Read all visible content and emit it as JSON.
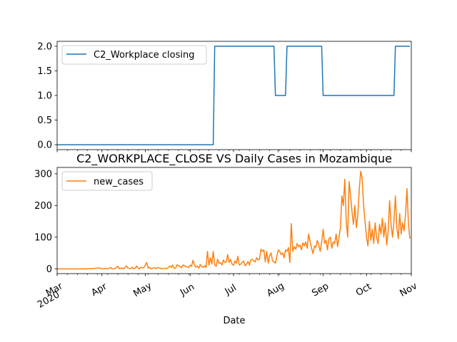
{
  "chart_data": [
    {
      "type": "line",
      "title": "",
      "xlabel": "",
      "ylabel": "",
      "ylim": [
        -0.1,
        2.1
      ],
      "yticks": [
        "0.0",
        "0.5",
        "1.0",
        "1.5",
        "2.0"
      ],
      "grid": false,
      "legend": "top-left",
      "series": [
        {
          "name": "C2_Workplace closing",
          "color": "#1f77b4",
          "step": true,
          "points": [
            [
              "2020-03-01",
              0
            ],
            [
              "2020-06-17",
              0
            ],
            [
              "2020-06-18",
              2
            ],
            [
              "2020-07-29",
              2
            ],
            [
              "2020-07-30",
              1
            ],
            [
              "2020-08-06",
              1
            ],
            [
              "2020-08-07",
              2
            ],
            [
              "2020-08-31",
              2
            ],
            [
              "2020-09-01",
              1
            ],
            [
              "2020-10-20",
              1
            ],
            [
              "2020-10-21",
              2
            ],
            [
              "2020-10-31",
              2
            ]
          ]
        }
      ]
    },
    {
      "type": "line",
      "title": "C2_WORKPLACE_CLOSE VS Daily Cases in Mozambique",
      "xlabel": "Date",
      "ylabel": "",
      "ylim": [
        -15,
        320
      ],
      "yticks": [
        "0",
        "100",
        "200",
        "300"
      ],
      "grid": false,
      "legend": "top-left",
      "x_start": "2020-03-01",
      "x_end": "2020-11-01",
      "xticks": [
        {
          "date": "2020-03-01",
          "label": "Mar",
          "sublabel": "2020"
        },
        {
          "date": "2020-04-01",
          "label": "Apr"
        },
        {
          "date": "2020-05-01",
          "label": "May"
        },
        {
          "date": "2020-06-01",
          "label": "Jun"
        },
        {
          "date": "2020-07-01",
          "label": "Jul"
        },
        {
          "date": "2020-08-01",
          "label": "Aug"
        },
        {
          "date": "2020-09-01",
          "label": "Sep"
        },
        {
          "date": "2020-10-01",
          "label": "Oct"
        },
        {
          "date": "2020-11-01",
          "label": "Nov"
        }
      ],
      "series": [
        {
          "name": "new_cases",
          "color": "#ff7f0e",
          "points": [
            [
              "2020-03-01",
              0
            ],
            [
              "2020-03-22",
              0
            ],
            [
              "2020-03-23",
              1
            ],
            [
              "2020-03-24",
              0
            ],
            [
              "2020-03-30",
              3
            ],
            [
              "2020-03-31",
              2
            ],
            [
              "2020-04-01",
              0
            ],
            [
              "2020-04-03",
              1
            ],
            [
              "2020-04-05",
              0
            ],
            [
              "2020-04-07",
              4
            ],
            [
              "2020-04-08",
              0
            ],
            [
              "2020-04-10",
              1
            ],
            [
              "2020-04-12",
              8
            ],
            [
              "2020-04-13",
              0
            ],
            [
              "2020-04-15",
              3
            ],
            [
              "2020-04-16",
              0
            ],
            [
              "2020-04-18",
              9
            ],
            [
              "2020-04-19",
              2
            ],
            [
              "2020-04-21",
              1
            ],
            [
              "2020-04-22",
              5
            ],
            [
              "2020-04-23",
              0
            ],
            [
              "2020-04-24",
              2
            ],
            [
              "2020-04-25",
              9
            ],
            [
              "2020-04-26",
              3
            ],
            [
              "2020-04-27",
              0
            ],
            [
              "2020-04-28",
              5
            ],
            [
              "2020-04-29",
              3
            ],
            [
              "2020-04-30",
              4
            ],
            [
              "2020-05-02",
              20
            ],
            [
              "2020-05-03",
              2
            ],
            [
              "2020-05-04",
              5
            ],
            [
              "2020-05-05",
              0
            ],
            [
              "2020-05-07",
              3
            ],
            [
              "2020-05-08",
              1
            ],
            [
              "2020-05-10",
              4
            ],
            [
              "2020-05-12",
              0
            ],
            [
              "2020-05-14",
              2
            ],
            [
              "2020-05-16",
              1
            ],
            [
              "2020-05-18",
              9
            ],
            [
              "2020-05-19",
              4
            ],
            [
              "2020-05-20",
              12
            ],
            [
              "2020-05-21",
              1
            ],
            [
              "2020-05-22",
              3
            ],
            [
              "2020-05-23",
              13
            ],
            [
              "2020-05-24",
              10
            ],
            [
              "2020-05-25",
              8
            ],
            [
              "2020-05-26",
              3
            ],
            [
              "2020-05-27",
              12
            ],
            [
              "2020-05-28",
              10
            ],
            [
              "2020-05-29",
              7
            ],
            [
              "2020-05-30",
              6
            ],
            [
              "2020-05-31",
              4
            ],
            [
              "2020-06-01",
              12
            ],
            [
              "2020-06-02",
              8
            ],
            [
              "2020-06-03",
              27
            ],
            [
              "2020-06-04",
              12
            ],
            [
              "2020-06-05",
              5
            ],
            [
              "2020-06-06",
              9
            ],
            [
              "2020-06-07",
              2
            ],
            [
              "2020-06-08",
              14
            ],
            [
              "2020-06-09",
              7
            ],
            [
              "2020-06-10",
              5
            ],
            [
              "2020-06-11",
              10
            ],
            [
              "2020-06-12",
              4
            ],
            [
              "2020-06-13",
              55
            ],
            [
              "2020-06-14",
              12
            ],
            [
              "2020-06-15",
              35
            ],
            [
              "2020-06-16",
              15
            ],
            [
              "2020-06-17",
              55
            ],
            [
              "2020-06-18",
              13
            ],
            [
              "2020-06-19",
              8
            ],
            [
              "2020-06-20",
              30
            ],
            [
              "2020-06-21",
              17
            ],
            [
              "2020-06-22",
              20
            ],
            [
              "2020-06-23",
              12
            ],
            [
              "2020-06-24",
              28
            ],
            [
              "2020-06-25",
              20
            ],
            [
              "2020-06-26",
              22
            ],
            [
              "2020-06-27",
              45
            ],
            [
              "2020-06-28",
              20
            ],
            [
              "2020-06-29",
              30
            ],
            [
              "2020-06-30",
              15
            ],
            [
              "2020-07-01",
              11
            ],
            [
              "2020-07-02",
              25
            ],
            [
              "2020-07-03",
              18
            ],
            [
              "2020-07-04",
              40
            ],
            [
              "2020-07-05",
              12
            ],
            [
              "2020-07-06",
              15
            ],
            [
              "2020-07-07",
              20
            ],
            [
              "2020-07-08",
              25
            ],
            [
              "2020-07-09",
              10
            ],
            [
              "2020-07-10",
              14
            ],
            [
              "2020-07-11",
              23
            ],
            [
              "2020-07-12",
              12
            ],
            [
              "2020-07-13",
              28
            ],
            [
              "2020-07-14",
              30
            ],
            [
              "2020-07-15",
              25
            ],
            [
              "2020-07-16",
              22
            ],
            [
              "2020-07-17",
              35
            ],
            [
              "2020-07-18",
              28
            ],
            [
              "2020-07-19",
              30
            ],
            [
              "2020-07-20",
              62
            ],
            [
              "2020-07-21",
              55
            ],
            [
              "2020-07-22",
              60
            ],
            [
              "2020-07-23",
              22
            ],
            [
              "2020-07-24",
              55
            ],
            [
              "2020-07-25",
              18
            ],
            [
              "2020-07-26",
              42
            ],
            [
              "2020-07-27",
              50
            ],
            [
              "2020-07-28",
              25
            ],
            [
              "2020-07-29",
              22
            ],
            [
              "2020-07-30",
              18
            ],
            [
              "2020-07-31",
              40
            ],
            [
              "2020-08-01",
              60
            ],
            [
              "2020-08-02",
              55
            ],
            [
              "2020-08-03",
              45
            ],
            [
              "2020-08-04",
              50
            ],
            [
              "2020-08-05",
              35
            ],
            [
              "2020-08-06",
              60
            ],
            [
              "2020-08-07",
              55
            ],
            [
              "2020-08-08",
              67
            ],
            [
              "2020-08-09",
              20
            ],
            [
              "2020-08-10",
              143
            ],
            [
              "2020-08-11",
              55
            ],
            [
              "2020-08-12",
              70
            ],
            [
              "2020-08-13",
              62
            ],
            [
              "2020-08-14",
              80
            ],
            [
              "2020-08-15",
              70
            ],
            [
              "2020-08-16",
              75
            ],
            [
              "2020-08-17",
              60
            ],
            [
              "2020-08-18",
              82
            ],
            [
              "2020-08-19",
              73
            ],
            [
              "2020-08-20",
              85
            ],
            [
              "2020-08-21",
              65
            ],
            [
              "2020-08-22",
              110
            ],
            [
              "2020-08-23",
              85
            ],
            [
              "2020-08-24",
              65
            ],
            [
              "2020-08-25",
              48
            ],
            [
              "2020-08-26",
              72
            ],
            [
              "2020-08-27",
              68
            ],
            [
              "2020-08-28",
              90
            ],
            [
              "2020-08-29",
              75
            ],
            [
              "2020-08-30",
              55
            ],
            [
              "2020-08-31",
              85
            ],
            [
              "2020-09-01",
              125
            ],
            [
              "2020-09-02",
              80
            ],
            [
              "2020-09-03",
              90
            ],
            [
              "2020-09-04",
              60
            ],
            [
              "2020-09-05",
              95
            ],
            [
              "2020-09-06",
              100
            ],
            [
              "2020-09-07",
              65
            ],
            [
              "2020-09-08",
              85
            ],
            [
              "2020-09-09",
              80
            ],
            [
              "2020-09-10",
              110
            ],
            [
              "2020-09-11",
              70
            ],
            [
              "2020-09-12",
              100
            ],
            [
              "2020-09-13",
              130
            ],
            [
              "2020-09-14",
              230
            ],
            [
              "2020-09-15",
              200
            ],
            [
              "2020-09-16",
              283
            ],
            [
              "2020-09-17",
              150
            ],
            [
              "2020-09-18",
              100
            ],
            [
              "2020-09-19",
              275
            ],
            [
              "2020-09-20",
              230
            ],
            [
              "2020-09-21",
              180
            ],
            [
              "2020-09-22",
              140
            ],
            [
              "2020-09-23",
              200
            ],
            [
              "2020-09-24",
              130
            ],
            [
              "2020-09-25",
              170
            ],
            [
              "2020-09-26",
              250
            ],
            [
              "2020-09-27",
              308
            ],
            [
              "2020-09-28",
              285
            ],
            [
              "2020-09-29",
              200
            ],
            [
              "2020-09-30",
              150
            ],
            [
              "2020-10-01",
              100
            ],
            [
              "2020-10-02",
              72
            ],
            [
              "2020-10-03",
              150
            ],
            [
              "2020-10-04",
              90
            ],
            [
              "2020-10-05",
              125
            ],
            [
              "2020-10-06",
              80
            ],
            [
              "2020-10-07",
              145
            ],
            [
              "2020-10-08",
              100
            ],
            [
              "2020-10-09",
              80
            ],
            [
              "2020-10-10",
              140
            ],
            [
              "2020-10-11",
              110
            ],
            [
              "2020-10-12",
              160
            ],
            [
              "2020-10-13",
              100
            ],
            [
              "2020-10-14",
              145
            ],
            [
              "2020-10-15",
              75
            ],
            [
              "2020-10-16",
              120
            ],
            [
              "2020-10-17",
              215
            ],
            [
              "2020-10-18",
              140
            ],
            [
              "2020-10-19",
              100
            ],
            [
              "2020-10-20",
              150
            ],
            [
              "2020-10-21",
              230
            ],
            [
              "2020-10-22",
              130
            ],
            [
              "2020-10-23",
              95
            ],
            [
              "2020-10-24",
              175
            ],
            [
              "2020-10-25",
              110
            ],
            [
              "2020-10-26",
              145
            ],
            [
              "2020-10-27",
              120
            ],
            [
              "2020-10-28",
              170
            ],
            [
              "2020-10-29",
              253
            ],
            [
              "2020-10-30",
              145
            ],
            [
              "2020-10-31",
              95
            ]
          ]
        }
      ]
    }
  ]
}
